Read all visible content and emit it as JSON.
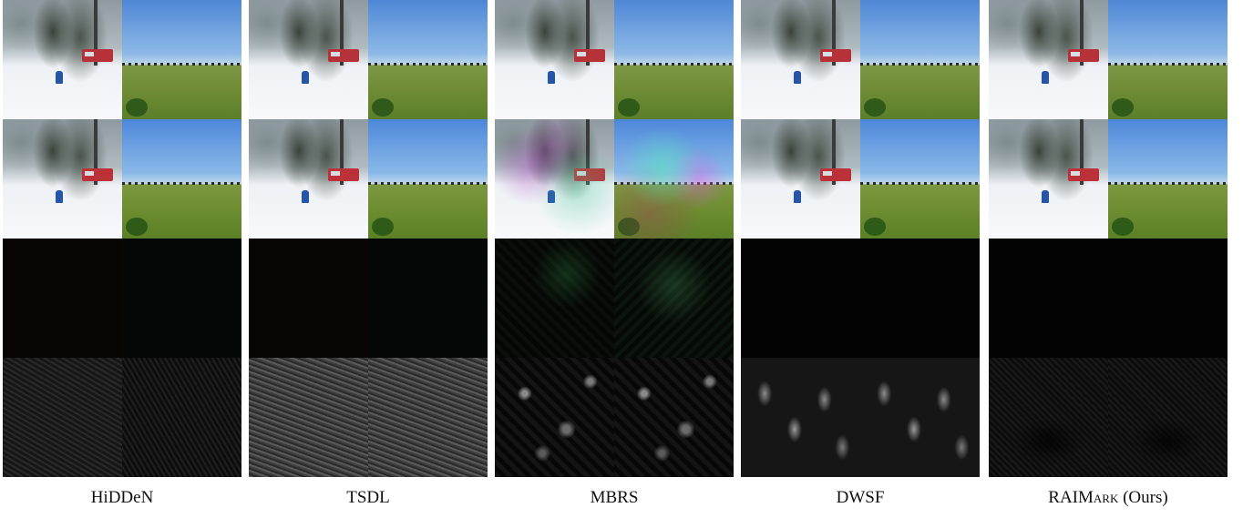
{
  "columns": [
    {
      "name": "HiDDeN"
    },
    {
      "name": "TSDL"
    },
    {
      "name": "MBRS"
    },
    {
      "name": "DWSF"
    },
    {
      "name_main": "RAIM",
      "name_sub": "ARK",
      "name_suffix": " (Ours)"
    }
  ]
}
